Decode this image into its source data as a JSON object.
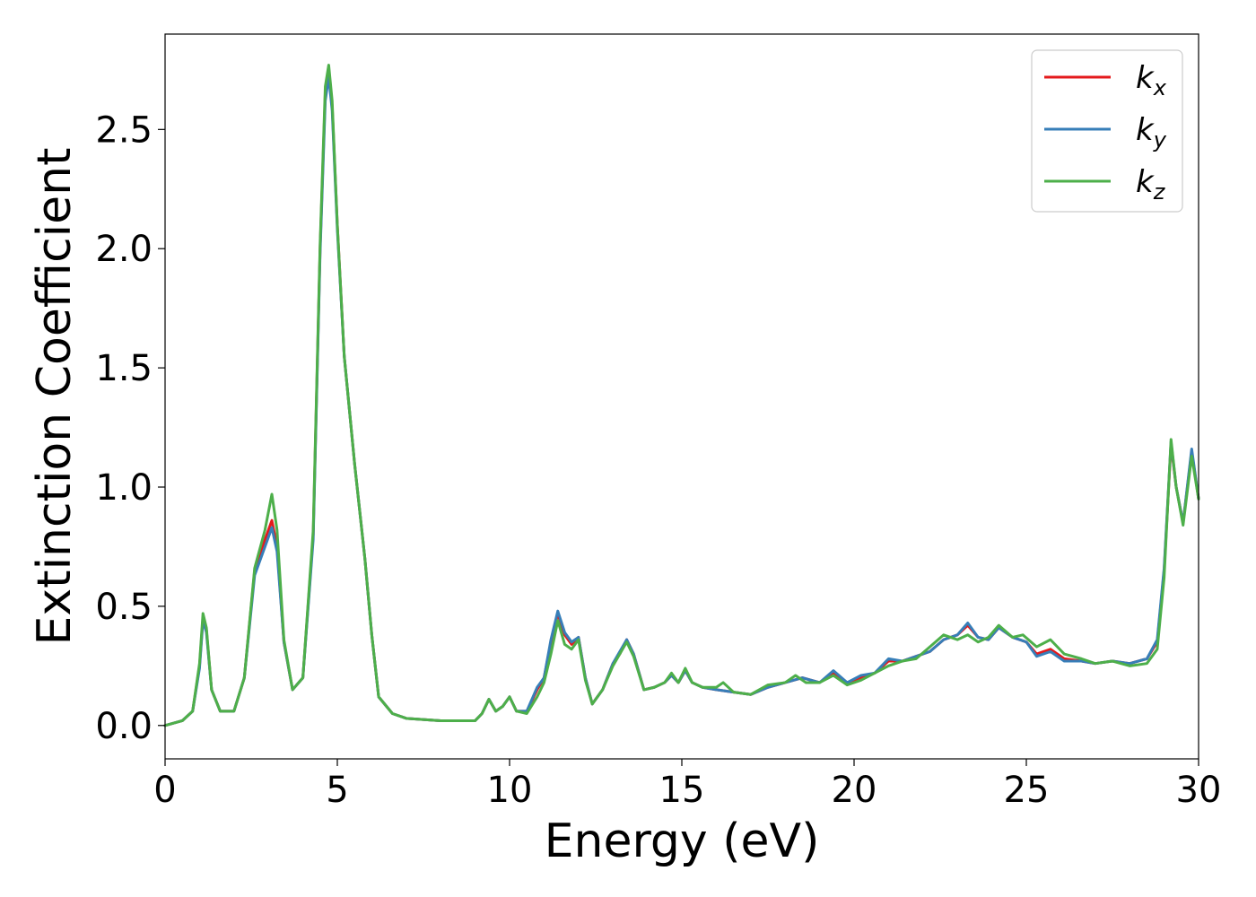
{
  "chart_data": {
    "type": "line",
    "title": "",
    "xlabel": "Energy (eV)",
    "ylabel": "Extinction Coefficient",
    "xlim": [
      0,
      30
    ],
    "ylim": [
      -0.14,
      2.9
    ],
    "xticks": [
      0,
      5,
      10,
      15,
      20,
      25,
      30
    ],
    "xtick_labels": [
      "0",
      "5",
      "10",
      "15",
      "20",
      "25",
      "30"
    ],
    "yticks": [
      0.0,
      0.5,
      1.0,
      1.5,
      2.0,
      2.5
    ],
    "ytick_labels": [
      "0.0",
      "0.5",
      "1.0",
      "1.5",
      "2.0",
      "2.5"
    ],
    "grid": false,
    "legend_position": "top-right",
    "series": [
      {
        "name": "k",
        "name_subscript": "x",
        "color": "#e41a1c",
        "points": [
          [
            0,
            0.0
          ],
          [
            0.5,
            0.02
          ],
          [
            0.8,
            0.06
          ],
          [
            1.0,
            0.25
          ],
          [
            1.1,
            0.45
          ],
          [
            1.2,
            0.4
          ],
          [
            1.35,
            0.15
          ],
          [
            1.6,
            0.06
          ],
          [
            2.0,
            0.06
          ],
          [
            2.3,
            0.2
          ],
          [
            2.6,
            0.65
          ],
          [
            2.9,
            0.78
          ],
          [
            3.1,
            0.86
          ],
          [
            3.25,
            0.75
          ],
          [
            3.45,
            0.35
          ],
          [
            3.7,
            0.15
          ],
          [
            4.0,
            0.2
          ],
          [
            4.3,
            0.8
          ],
          [
            4.5,
            2.0
          ],
          [
            4.65,
            2.65
          ],
          [
            4.75,
            2.74
          ],
          [
            4.85,
            2.6
          ],
          [
            5.0,
            2.1
          ],
          [
            5.2,
            1.55
          ],
          [
            5.5,
            1.1
          ],
          [
            5.8,
            0.7
          ],
          [
            6.0,
            0.38
          ],
          [
            6.2,
            0.12
          ],
          [
            6.6,
            0.05
          ],
          [
            7.0,
            0.03
          ],
          [
            8.0,
            0.02
          ],
          [
            9.0,
            0.02
          ],
          [
            9.2,
            0.05
          ],
          [
            9.4,
            0.11
          ],
          [
            9.6,
            0.06
          ],
          [
            9.8,
            0.08
          ],
          [
            10.0,
            0.12
          ],
          [
            10.2,
            0.06
          ],
          [
            10.5,
            0.06
          ],
          [
            10.8,
            0.15
          ],
          [
            11.0,
            0.2
          ],
          [
            11.2,
            0.35
          ],
          [
            11.4,
            0.47
          ],
          [
            11.6,
            0.38
          ],
          [
            11.8,
            0.34
          ],
          [
            12.0,
            0.37
          ],
          [
            12.2,
            0.2
          ],
          [
            12.4,
            0.09
          ],
          [
            12.7,
            0.15
          ],
          [
            13.0,
            0.26
          ],
          [
            13.2,
            0.3
          ],
          [
            13.4,
            0.36
          ],
          [
            13.6,
            0.3
          ],
          [
            13.9,
            0.15
          ],
          [
            14.2,
            0.16
          ],
          [
            14.5,
            0.18
          ],
          [
            14.7,
            0.21
          ],
          [
            14.9,
            0.18
          ],
          [
            15.1,
            0.23
          ],
          [
            15.3,
            0.18
          ],
          [
            15.6,
            0.16
          ],
          [
            16.0,
            0.15
          ],
          [
            16.5,
            0.14
          ],
          [
            17.0,
            0.13
          ],
          [
            17.5,
            0.16
          ],
          [
            18.0,
            0.18
          ],
          [
            18.5,
            0.2
          ],
          [
            19.0,
            0.18
          ],
          [
            19.4,
            0.22
          ],
          [
            19.8,
            0.18
          ],
          [
            20.2,
            0.2
          ],
          [
            20.6,
            0.22
          ],
          [
            21.0,
            0.27
          ],
          [
            21.4,
            0.27
          ],
          [
            21.8,
            0.29
          ],
          [
            22.2,
            0.31
          ],
          [
            22.6,
            0.36
          ],
          [
            23.0,
            0.38
          ],
          [
            23.3,
            0.42
          ],
          [
            23.6,
            0.37
          ],
          [
            23.9,
            0.36
          ],
          [
            24.2,
            0.41
          ],
          [
            24.6,
            0.37
          ],
          [
            25.0,
            0.35
          ],
          [
            25.3,
            0.3
          ],
          [
            25.7,
            0.32
          ],
          [
            26.1,
            0.28
          ],
          [
            26.6,
            0.27
          ],
          [
            27.0,
            0.26
          ],
          [
            27.5,
            0.27
          ],
          [
            28.0,
            0.26
          ],
          [
            28.5,
            0.28
          ],
          [
            28.8,
            0.35
          ],
          [
            29.0,
            0.65
          ],
          [
            29.2,
            1.18
          ],
          [
            29.35,
            1.0
          ],
          [
            29.55,
            0.85
          ],
          [
            29.8,
            1.15
          ],
          [
            30.0,
            0.95
          ]
        ]
      },
      {
        "name": "k",
        "name_subscript": "y",
        "color": "#377eb8",
        "points": [
          [
            0,
            0.0
          ],
          [
            0.5,
            0.02
          ],
          [
            0.8,
            0.06
          ],
          [
            1.0,
            0.24
          ],
          [
            1.1,
            0.44
          ],
          [
            1.2,
            0.39
          ],
          [
            1.35,
            0.15
          ],
          [
            1.6,
            0.06
          ],
          [
            2.0,
            0.06
          ],
          [
            2.3,
            0.2
          ],
          [
            2.6,
            0.63
          ],
          [
            2.9,
            0.75
          ],
          [
            3.1,
            0.83
          ],
          [
            3.25,
            0.73
          ],
          [
            3.45,
            0.35
          ],
          [
            3.7,
            0.15
          ],
          [
            4.0,
            0.2
          ],
          [
            4.3,
            0.78
          ],
          [
            4.5,
            1.98
          ],
          [
            4.65,
            2.62
          ],
          [
            4.75,
            2.72
          ],
          [
            4.85,
            2.58
          ],
          [
            5.0,
            2.08
          ],
          [
            5.2,
            1.55
          ],
          [
            5.5,
            1.1
          ],
          [
            5.8,
            0.7
          ],
          [
            6.0,
            0.38
          ],
          [
            6.2,
            0.12
          ],
          [
            6.6,
            0.05
          ],
          [
            7.0,
            0.03
          ],
          [
            8.0,
            0.02
          ],
          [
            9.0,
            0.02
          ],
          [
            9.2,
            0.05
          ],
          [
            9.4,
            0.11
          ],
          [
            9.6,
            0.06
          ],
          [
            9.8,
            0.08
          ],
          [
            10.0,
            0.12
          ],
          [
            10.2,
            0.06
          ],
          [
            10.5,
            0.06
          ],
          [
            10.8,
            0.16
          ],
          [
            11.0,
            0.2
          ],
          [
            11.2,
            0.36
          ],
          [
            11.4,
            0.48
          ],
          [
            11.6,
            0.39
          ],
          [
            11.8,
            0.35
          ],
          [
            12.0,
            0.37
          ],
          [
            12.2,
            0.2
          ],
          [
            12.4,
            0.09
          ],
          [
            12.7,
            0.15
          ],
          [
            13.0,
            0.26
          ],
          [
            13.2,
            0.31
          ],
          [
            13.4,
            0.36
          ],
          [
            13.6,
            0.3
          ],
          [
            13.9,
            0.15
          ],
          [
            14.2,
            0.16
          ],
          [
            14.5,
            0.18
          ],
          [
            14.7,
            0.21
          ],
          [
            14.9,
            0.18
          ],
          [
            15.1,
            0.23
          ],
          [
            15.3,
            0.18
          ],
          [
            15.6,
            0.16
          ],
          [
            16.0,
            0.15
          ],
          [
            16.5,
            0.14
          ],
          [
            17.0,
            0.13
          ],
          [
            17.5,
            0.16
          ],
          [
            18.0,
            0.18
          ],
          [
            18.5,
            0.2
          ],
          [
            19.0,
            0.18
          ],
          [
            19.4,
            0.23
          ],
          [
            19.8,
            0.18
          ],
          [
            20.2,
            0.21
          ],
          [
            20.6,
            0.22
          ],
          [
            21.0,
            0.28
          ],
          [
            21.4,
            0.27
          ],
          [
            21.8,
            0.29
          ],
          [
            22.2,
            0.31
          ],
          [
            22.6,
            0.36
          ],
          [
            23.0,
            0.38
          ],
          [
            23.3,
            0.43
          ],
          [
            23.6,
            0.37
          ],
          [
            23.9,
            0.36
          ],
          [
            24.2,
            0.41
          ],
          [
            24.6,
            0.37
          ],
          [
            25.0,
            0.35
          ],
          [
            25.3,
            0.29
          ],
          [
            25.7,
            0.31
          ],
          [
            26.1,
            0.27
          ],
          [
            26.6,
            0.27
          ],
          [
            27.0,
            0.26
          ],
          [
            27.5,
            0.27
          ],
          [
            28.0,
            0.26
          ],
          [
            28.5,
            0.28
          ],
          [
            28.8,
            0.36
          ],
          [
            29.0,
            0.66
          ],
          [
            29.2,
            1.19
          ],
          [
            29.35,
            1.0
          ],
          [
            29.55,
            0.85
          ],
          [
            29.8,
            1.16
          ],
          [
            30.0,
            0.95
          ]
        ]
      },
      {
        "name": "k",
        "name_subscript": "z",
        "color": "#4daf4a",
        "points": [
          [
            0,
            0.0
          ],
          [
            0.5,
            0.02
          ],
          [
            0.8,
            0.06
          ],
          [
            1.0,
            0.26
          ],
          [
            1.1,
            0.47
          ],
          [
            1.2,
            0.41
          ],
          [
            1.35,
            0.15
          ],
          [
            1.6,
            0.06
          ],
          [
            2.0,
            0.06
          ],
          [
            2.3,
            0.2
          ],
          [
            2.6,
            0.66
          ],
          [
            2.9,
            0.82
          ],
          [
            3.1,
            0.97
          ],
          [
            3.25,
            0.82
          ],
          [
            3.45,
            0.36
          ],
          [
            3.7,
            0.15
          ],
          [
            4.0,
            0.2
          ],
          [
            4.3,
            0.82
          ],
          [
            4.5,
            2.02
          ],
          [
            4.65,
            2.68
          ],
          [
            4.75,
            2.77
          ],
          [
            4.85,
            2.62
          ],
          [
            5.0,
            2.1
          ],
          [
            5.2,
            1.55
          ],
          [
            5.5,
            1.1
          ],
          [
            5.8,
            0.7
          ],
          [
            6.0,
            0.38
          ],
          [
            6.2,
            0.12
          ],
          [
            6.6,
            0.05
          ],
          [
            7.0,
            0.03
          ],
          [
            8.0,
            0.02
          ],
          [
            9.0,
            0.02
          ],
          [
            9.2,
            0.05
          ],
          [
            9.4,
            0.11
          ],
          [
            9.6,
            0.06
          ],
          [
            9.8,
            0.08
          ],
          [
            10.0,
            0.12
          ],
          [
            10.2,
            0.06
          ],
          [
            10.5,
            0.05
          ],
          [
            10.8,
            0.12
          ],
          [
            11.0,
            0.18
          ],
          [
            11.2,
            0.3
          ],
          [
            11.4,
            0.44
          ],
          [
            11.6,
            0.34
          ],
          [
            11.8,
            0.32
          ],
          [
            12.0,
            0.36
          ],
          [
            12.2,
            0.19
          ],
          [
            12.4,
            0.09
          ],
          [
            12.7,
            0.15
          ],
          [
            13.0,
            0.25
          ],
          [
            13.2,
            0.3
          ],
          [
            13.4,
            0.35
          ],
          [
            13.6,
            0.29
          ],
          [
            13.9,
            0.15
          ],
          [
            14.2,
            0.16
          ],
          [
            14.5,
            0.18
          ],
          [
            14.7,
            0.22
          ],
          [
            14.9,
            0.18
          ],
          [
            15.1,
            0.24
          ],
          [
            15.3,
            0.18
          ],
          [
            15.6,
            0.16
          ],
          [
            16.0,
            0.16
          ],
          [
            16.2,
            0.18
          ],
          [
            16.5,
            0.14
          ],
          [
            17.0,
            0.13
          ],
          [
            17.5,
            0.17
          ],
          [
            18.0,
            0.18
          ],
          [
            18.3,
            0.21
          ],
          [
            18.6,
            0.18
          ],
          [
            19.0,
            0.18
          ],
          [
            19.4,
            0.21
          ],
          [
            19.8,
            0.17
          ],
          [
            20.2,
            0.19
          ],
          [
            20.6,
            0.22
          ],
          [
            21.0,
            0.25
          ],
          [
            21.4,
            0.27
          ],
          [
            21.8,
            0.28
          ],
          [
            22.2,
            0.33
          ],
          [
            22.6,
            0.38
          ],
          [
            23.0,
            0.36
          ],
          [
            23.3,
            0.38
          ],
          [
            23.6,
            0.35
          ],
          [
            23.9,
            0.37
          ],
          [
            24.2,
            0.42
          ],
          [
            24.6,
            0.37
          ],
          [
            24.9,
            0.38
          ],
          [
            25.3,
            0.33
          ],
          [
            25.7,
            0.36
          ],
          [
            26.1,
            0.3
          ],
          [
            26.6,
            0.28
          ],
          [
            27.0,
            0.26
          ],
          [
            27.5,
            0.27
          ],
          [
            28.0,
            0.25
          ],
          [
            28.5,
            0.26
          ],
          [
            28.8,
            0.32
          ],
          [
            29.0,
            0.62
          ],
          [
            29.2,
            1.2
          ],
          [
            29.35,
            1.0
          ],
          [
            29.55,
            0.84
          ],
          [
            29.8,
            1.13
          ],
          [
            30.0,
            0.95
          ]
        ]
      }
    ]
  }
}
